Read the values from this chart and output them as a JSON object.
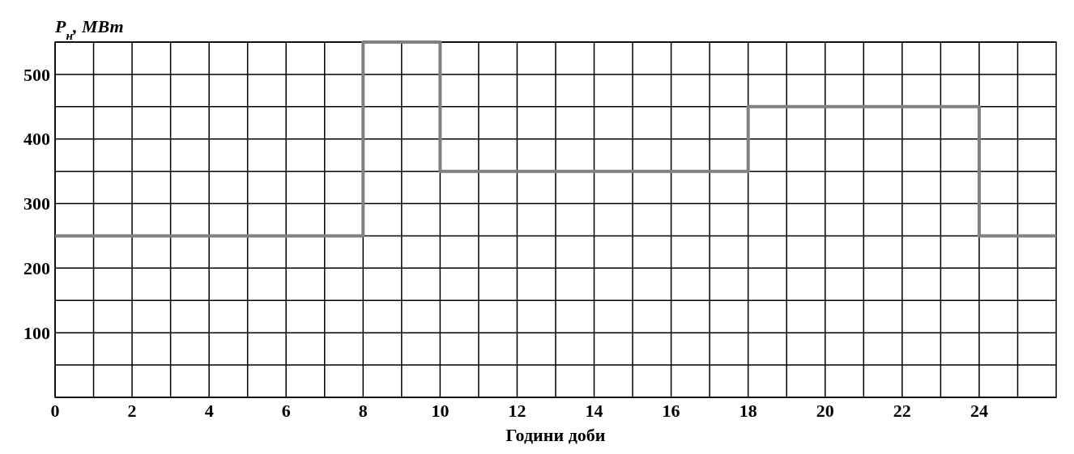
{
  "chart_data": {
    "type": "step",
    "xlabel": "Години доби",
    "ylabel": "P$_{н}$, МВт",
    "x": [
      0,
      8,
      10,
      18,
      24,
      26
    ],
    "series": [
      {
        "color": "#808080",
        "values": [
          250,
          550,
          350,
          450,
          250,
          250
        ]
      }
    ],
    "xlim": [
      0,
      26
    ],
    "xticks": [
      0,
      {
        "value": 1,
        "label": null
      },
      2,
      {
        "value": 3,
        "label": null
      },
      4,
      {
        "value": 5,
        "label": null
      },
      6,
      {
        "value": 7,
        "label": null
      },
      8,
      {
        "value": 9,
        "label": null
      },
      10,
      {
        "value": 11,
        "label": null
      },
      12,
      {
        "value": 13,
        "label": null
      },
      14,
      {
        "value": 15,
        "label": null
      },
      16,
      {
        "value": 17,
        "label": null
      },
      18,
      {
        "value": 19,
        "label": null
      },
      20,
      {
        "value": 21,
        "label": null
      },
      22,
      {
        "value": 23,
        "label": null
      },
      24,
      {
        "value": 25,
        "label": null
      }
    ],
    "ylim": [
      0,
      550
    ],
    "yticks": [
      {
        "value": 0,
        "label": null
      },
      {
        "value": 50,
        "label": null
      },
      100,
      {
        "value": 150,
        "label": null
      },
      200,
      {
        "value": 250,
        "label": null
      },
      300,
      {
        "value": 350,
        "label": null
      },
      400,
      {
        "value": 450,
        "label": null
      },
      500,
      {
        "value": 550,
        "label": null
      }
    ],
    "grid": true,
    "marker": "none",
    "line_style": "solid"
  }
}
